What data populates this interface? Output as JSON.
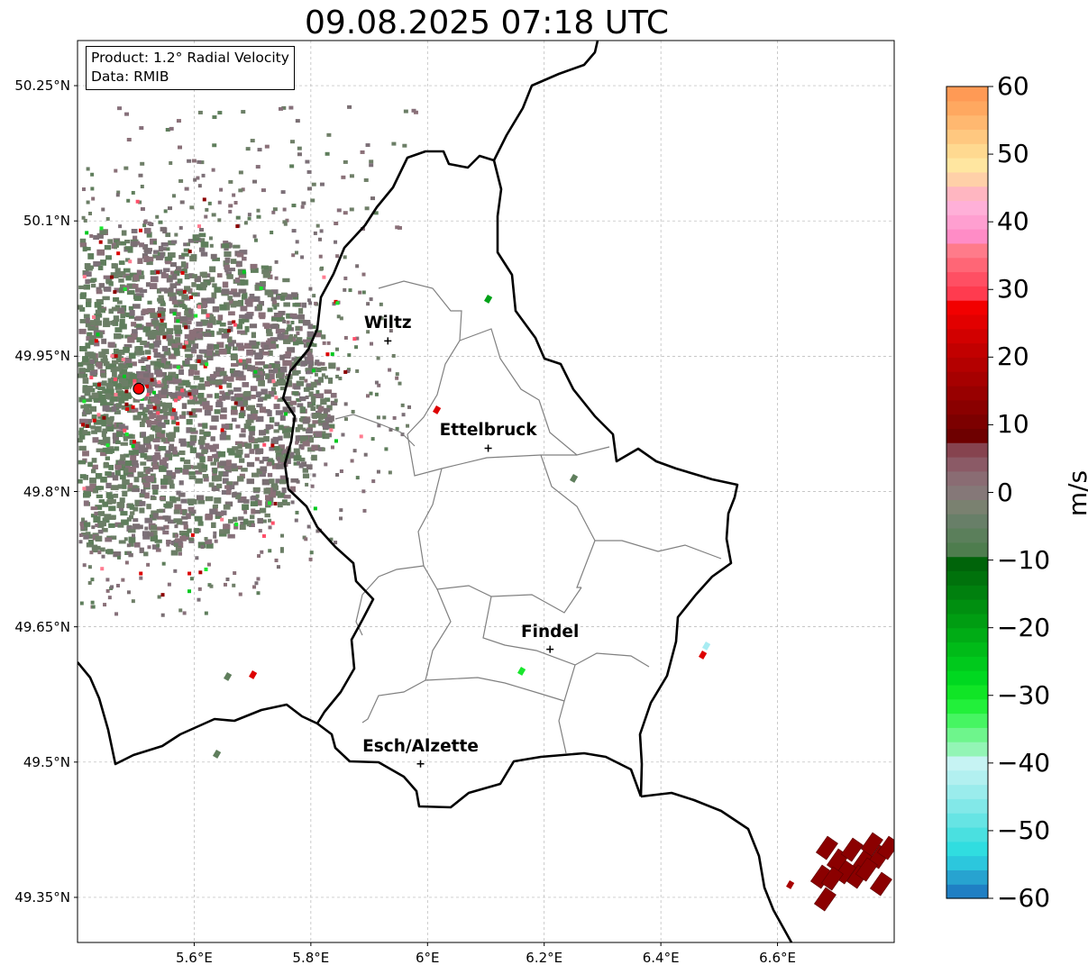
{
  "title": "09.08.2025 07:18 UTC",
  "info": {
    "product": "Product: 1.2° Radial Velocity",
    "data_source": "Data: RMIB"
  },
  "map": {
    "extent_lon": [
      5.4,
      6.8
    ],
    "extent_lat": [
      49.3,
      50.3
    ],
    "lat_ticks": [
      {
        "value": 50.25,
        "label": "50.25°N"
      },
      {
        "value": 50.1,
        "label": "50.1°N"
      },
      {
        "value": 49.95,
        "label": "49.95°N"
      },
      {
        "value": 49.8,
        "label": "49.8°N"
      },
      {
        "value": 49.65,
        "label": "49.65°N"
      },
      {
        "value": 49.5,
        "label": "49.5°N"
      },
      {
        "value": 49.35,
        "label": "49.35°N"
      }
    ],
    "lon_ticks": [
      {
        "value": 5.6,
        "label": "5.6°E"
      },
      {
        "value": 5.8,
        "label": "5.8°E"
      },
      {
        "value": 6.0,
        "label": "6°E"
      },
      {
        "value": 6.2,
        "label": "6.2°E"
      },
      {
        "value": 6.4,
        "label": "6.4°E"
      },
      {
        "value": 6.6,
        "label": "6.6°E"
      }
    ],
    "grid": true,
    "radar_site": {
      "lon": 5.505,
      "lat": 49.914
    },
    "cities": [
      {
        "name": "Wiltz",
        "lon": 5.932,
        "lat": 49.967
      },
      {
        "name": "Ettelbruck",
        "lon": 6.104,
        "lat": 49.848
      },
      {
        "name": "Findel",
        "lon": 6.21,
        "lat": 49.625
      },
      {
        "name": "Esch/Alzette",
        "lon": 5.988,
        "lat": 49.498
      }
    ]
  },
  "colorbar": {
    "label": "m/s",
    "min": -60,
    "max": 60,
    "ticks": [
      "60",
      "50",
      "40",
      "30",
      "20",
      "10",
      "0",
      "−10",
      "−20",
      "−30",
      "−40",
      "−50",
      "−60"
    ],
    "colors_bottom_to_top": [
      "#1f7fc4",
      "#27a3d0",
      "#2cc7dd",
      "#30dde0",
      "#4ae0e0",
      "#66e4e4",
      "#82e8e8",
      "#9aecec",
      "#b2f0f0",
      "#c6f3f3",
      "#93f5b5",
      "#6ef58c",
      "#46f562",
      "#22f03a",
      "#10e526",
      "#00d820",
      "#00c91c",
      "#00bb18",
      "#00ac15",
      "#009d12",
      "#008f10",
      "#00800e",
      "#00720c",
      "#00640a",
      "#4e7d4e",
      "#5b7f5b",
      "#687f68",
      "#7a8170",
      "#857878",
      "#8a6c73",
      "#8b5a66",
      "#86434f",
      "#6e0000",
      "#7c0000",
      "#8a0000",
      "#980000",
      "#a60000",
      "#b40000",
      "#c20000",
      "#d20000",
      "#e20000",
      "#f20000",
      "#ff3b4f",
      "#ff4f63",
      "#ff6676",
      "#ff7b8a",
      "#ff8cc6",
      "#ff9fd0",
      "#ffb0d8",
      "#ffb6c1",
      "#ffd0a8",
      "#ffe6a0",
      "#ffd990",
      "#ffc880",
      "#ffb870",
      "#ffa860",
      "#ff9a55"
    ]
  }
}
